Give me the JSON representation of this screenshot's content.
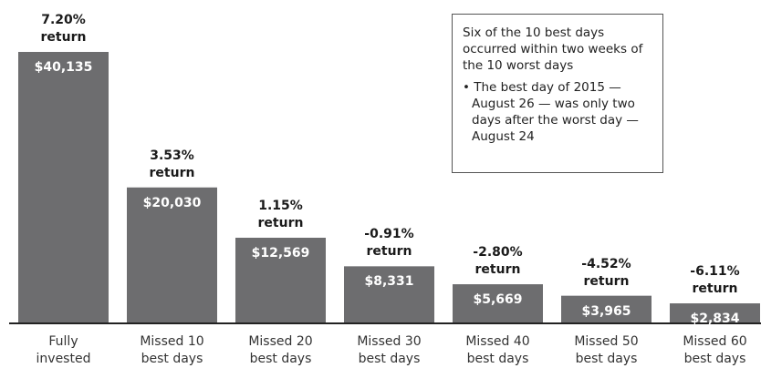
{
  "chart_data": {
    "type": "bar",
    "categories": [
      "Fully invested",
      "Missed 10 best days",
      "Missed 20 best days",
      "Missed 30 best days",
      "Missed 40 best days",
      "Missed 50 best days",
      "Missed 60 best days"
    ],
    "values": [
      40135,
      20030,
      12569,
      8331,
      5669,
      3965,
      2834
    ],
    "value_labels": [
      "$40,135",
      "$20,030",
      "$12,569",
      "$8,331",
      "$5,669",
      "$3,965",
      "$2,834"
    ],
    "annotations": [
      "7.20% return",
      "3.53% return",
      "1.15% return",
      "-0.91% return",
      "-2.80% return",
      "-4.52% return",
      "-6.11% return"
    ],
    "color": "#6d6d6f",
    "note": {
      "text": "Six of the 10 best days occurred within two weeks of the 10 worst days",
      "bullet": "• The best day of 2015 — August 26 — was only two days after the worst day — August 24"
    }
  }
}
